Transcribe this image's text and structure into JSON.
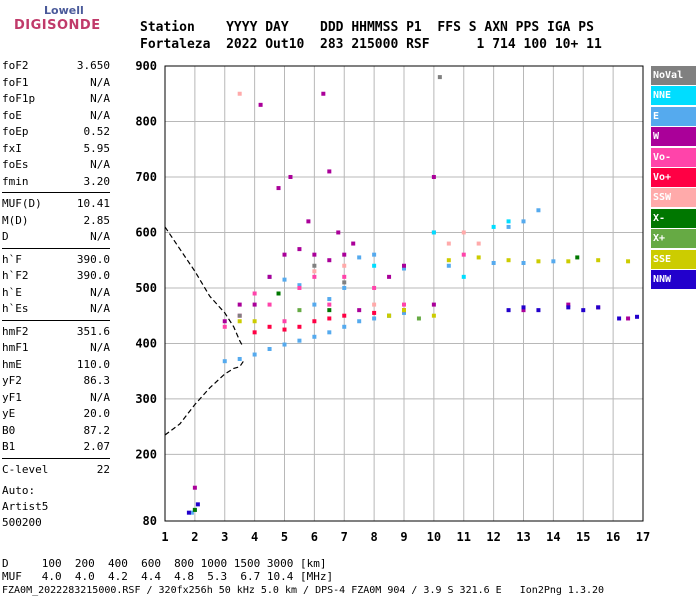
{
  "logo": {
    "line1": "Lowell",
    "line2": "DIGISONDE"
  },
  "header": {
    "line1": "Station    YYYY DAY    DDD HHMMSS P1  FFS S AXN PPS IGA PS",
    "line2": "Fortaleza  2022 Out10  283 215000 RSF      1 714 100 10+ 11"
  },
  "params_group1": [
    {
      "name": "foF2",
      "value": "3.650"
    },
    {
      "name": "foF1",
      "value": "N/A"
    },
    {
      "name": "foF1p",
      "value": "N/A"
    },
    {
      "name": "foE",
      "value": "N/A"
    },
    {
      "name": "foEp",
      "value": "0.52"
    },
    {
      "name": "fxI",
      "value": "5.95"
    },
    {
      "name": "foEs",
      "value": "N/A"
    },
    {
      "name": "fmin",
      "value": "3.20"
    }
  ],
  "params_group2": [
    {
      "name": "MUF(D)",
      "value": "10.41"
    },
    {
      "name": "M(D)",
      "value": "2.85"
    },
    {
      "name": "D",
      "value": "N/A"
    }
  ],
  "params_group3": [
    {
      "name": "h`F",
      "value": "390.0"
    },
    {
      "name": "h`F2",
      "value": "390.0"
    },
    {
      "name": "h`E",
      "value": "N/A"
    },
    {
      "name": "h`Es",
      "value": "N/A"
    }
  ],
  "params_group4": [
    {
      "name": "hmF2",
      "value": "351.6"
    },
    {
      "name": "hmF1",
      "value": "N/A"
    },
    {
      "name": "hmE",
      "value": "110.0"
    },
    {
      "name": "yF2",
      "value": "86.3"
    },
    {
      "name": "yF1",
      "value": "N/A"
    },
    {
      "name": "yE",
      "value": "20.0"
    },
    {
      "name": "B0",
      "value": "87.2"
    },
    {
      "name": "B1",
      "value": "2.07"
    }
  ],
  "params_group5": [
    {
      "name": "C-level",
      "value": "22"
    }
  ],
  "auto": {
    "line1": "Auto:",
    "line2": "Artist5",
    "line3": "500200"
  },
  "legend": [
    {
      "label": "NoVal",
      "color": "#808080"
    },
    {
      "label": "NNE",
      "color": "#00ddff"
    },
    {
      "label": "E",
      "color": "#55aaee"
    },
    {
      "label": "W",
      "color": "#aa0099"
    },
    {
      "label": "Vo-",
      "color": "#ff44aa"
    },
    {
      "label": "Vo+",
      "color": "#ff0044"
    },
    {
      "label": "SSW",
      "color": "#ffaaaa"
    },
    {
      "label": "X-",
      "color": "#007700"
    },
    {
      "label": "X+",
      "color": "#66aa44"
    },
    {
      "label": "SSE",
      "color": "#cccc00"
    },
    {
      "label": "NNW",
      "color": "#2200cc"
    }
  ],
  "bottom": {
    "line1": "D     100  200  400  600  800 1000 1500 3000 [km]",
    "line2": "MUF   4.0  4.0  4.2  4.4  4.8  5.3  6.7 10.4 [MHz]",
    "line3": "FZA0M_2022283215000.RSF / 320fx256h 50 kHz 5.0 km / DPS-4 FZA0M 904 / 3.9 S 321.6 E   Ion2Png 1.3.20"
  },
  "chart_data": {
    "type": "scatter",
    "title": "",
    "xlabel": "",
    "ylabel": "",
    "xlim": [
      1,
      17
    ],
    "ylim": [
      80,
      900
    ],
    "xticks": [
      1,
      2,
      3,
      4,
      5,
      6,
      7,
      8,
      9,
      10,
      11,
      12,
      13,
      14,
      15,
      16,
      17
    ],
    "yticks": [
      80,
      200,
      300,
      400,
      500,
      600,
      700,
      800,
      900
    ],
    "grid": true,
    "profile": [
      [
        1.0,
        235
      ],
      [
        1.5,
        255
      ],
      [
        2.0,
        290
      ],
      [
        2.5,
        320
      ],
      [
        3.0,
        345
      ],
      [
        3.3,
        355
      ],
      [
        3.5,
        358
      ],
      [
        3.65,
        370
      ]
    ],
    "profile_upper": [
      [
        1.0,
        610
      ],
      [
        1.5,
        570
      ],
      [
        2.0,
        530
      ],
      [
        2.5,
        485
      ],
      [
        3.0,
        455
      ],
      [
        3.3,
        430
      ],
      [
        3.5,
        405
      ],
      [
        3.6,
        395
      ]
    ],
    "series": [
      {
        "name": "E",
        "color": "#55aaee",
        "points": [
          [
            3.0,
            368
          ],
          [
            3.5,
            372
          ],
          [
            4.0,
            380
          ],
          [
            4.5,
            390
          ],
          [
            5.0,
            398
          ],
          [
            5.5,
            405
          ],
          [
            6.0,
            412
          ],
          [
            6.5,
            420
          ],
          [
            7.0,
            430
          ],
          [
            7.5,
            440
          ],
          [
            8.0,
            445
          ],
          [
            8.5,
            450
          ],
          [
            9.0,
            455
          ],
          [
            6.0,
            470
          ],
          [
            6.5,
            480
          ],
          [
            7.0,
            500
          ],
          [
            5.5,
            505
          ],
          [
            5.0,
            515
          ],
          [
            4.5,
            520
          ],
          [
            12.5,
            610
          ],
          [
            13.0,
            620
          ],
          [
            13.5,
            640
          ],
          [
            10.5,
            540
          ],
          [
            12.0,
            545
          ],
          [
            13.0,
            545
          ],
          [
            14.0,
            548
          ],
          [
            7.5,
            555
          ],
          [
            8.0,
            560
          ],
          [
            9.0,
            535
          ],
          [
            2.0,
            100
          ],
          [
            1.9,
            95
          ]
        ]
      },
      {
        "name": "W",
        "color": "#aa0099",
        "points": [
          [
            4.0,
            470
          ],
          [
            4.5,
            520
          ],
          [
            5.0,
            560
          ],
          [
            5.5,
            570
          ],
          [
            6.0,
            560
          ],
          [
            6.5,
            550
          ],
          [
            7.0,
            560
          ],
          [
            7.3,
            580
          ],
          [
            6.8,
            600
          ],
          [
            5.8,
            620
          ],
          [
            4.8,
            680
          ],
          [
            5.2,
            700
          ],
          [
            6.5,
            710
          ],
          [
            7.5,
            460
          ],
          [
            8.5,
            520
          ],
          [
            9.0,
            540
          ],
          [
            10.0,
            470
          ],
          [
            3.5,
            470
          ],
          [
            3.0,
            440
          ],
          [
            4.2,
            830
          ],
          [
            6.3,
            850
          ],
          [
            2.0,
            140
          ],
          [
            10.0,
            700
          ],
          [
            14.5,
            470
          ],
          [
            15.5,
            465
          ],
          [
            13.0,
            460
          ],
          [
            16.5,
            445
          ]
        ]
      },
      {
        "name": "Vo-",
        "color": "#ff44aa",
        "points": [
          [
            3.0,
            430
          ],
          [
            3.5,
            450
          ],
          [
            4.0,
            490
          ],
          [
            4.5,
            470
          ],
          [
            5.0,
            440
          ],
          [
            5.5,
            500
          ],
          [
            6.0,
            520
          ],
          [
            6.5,
            470
          ],
          [
            7.0,
            520
          ],
          [
            8.0,
            500
          ],
          [
            9.0,
            470
          ],
          [
            10.0,
            600
          ],
          [
            11.0,
            560
          ]
        ]
      },
      {
        "name": "Vo+",
        "color": "#ff0044",
        "points": [
          [
            4.0,
            420
          ],
          [
            4.5,
            430
          ],
          [
            5.0,
            425
          ],
          [
            5.5,
            430
          ],
          [
            6.0,
            440
          ],
          [
            6.5,
            445
          ],
          [
            7.0,
            450
          ],
          [
            8.0,
            455
          ],
          [
            9.0,
            460
          ]
        ]
      },
      {
        "name": "SSW",
        "color": "#ffaaaa",
        "points": [
          [
            10.5,
            580
          ],
          [
            11.0,
            600
          ],
          [
            11.5,
            580
          ],
          [
            6.0,
            530
          ],
          [
            7.0,
            540
          ],
          [
            8.0,
            470
          ],
          [
            3.5,
            850
          ]
        ]
      },
      {
        "name": "X-",
        "color": "#007700",
        "points": [
          [
            2.0,
            100
          ],
          [
            4.8,
            490
          ],
          [
            6.5,
            460
          ],
          [
            14.8,
            555
          ]
        ]
      },
      {
        "name": "X+",
        "color": "#66aa44",
        "points": [
          [
            5.5,
            460
          ],
          [
            8.5,
            450
          ],
          [
            9.5,
            445
          ]
        ]
      },
      {
        "name": "SSE",
        "color": "#cccc00",
        "points": [
          [
            3.5,
            440
          ],
          [
            4.0,
            440
          ],
          [
            8.5,
            450
          ],
          [
            9.0,
            460
          ],
          [
            10.0,
            450
          ],
          [
            10.5,
            550
          ],
          [
            11.5,
            555
          ],
          [
            12.5,
            550
          ],
          [
            13.5,
            548
          ],
          [
            14.5,
            548
          ],
          [
            15.5,
            550
          ],
          [
            16.5,
            548
          ]
        ]
      },
      {
        "name": "NNW",
        "color": "#2200cc",
        "points": [
          [
            12.5,
            460
          ],
          [
            13.0,
            465
          ],
          [
            13.5,
            460
          ],
          [
            14.5,
            465
          ],
          [
            15.0,
            460
          ],
          [
            15.5,
            465
          ],
          [
            16.2,
            445
          ],
          [
            16.8,
            448
          ],
          [
            1.8,
            95
          ],
          [
            2.1,
            110
          ]
        ]
      },
      {
        "name": "NNE",
        "color": "#00ddff",
        "points": [
          [
            12.0,
            610
          ],
          [
            12.5,
            620
          ],
          [
            10.0,
            600
          ],
          [
            8.0,
            540
          ],
          [
            11.0,
            520
          ]
        ]
      },
      {
        "name": "NoVal",
        "color": "#808080",
        "points": [
          [
            6.0,
            540
          ],
          [
            7.0,
            510
          ],
          [
            10.2,
            880
          ],
          [
            3.5,
            450
          ]
        ]
      }
    ]
  }
}
